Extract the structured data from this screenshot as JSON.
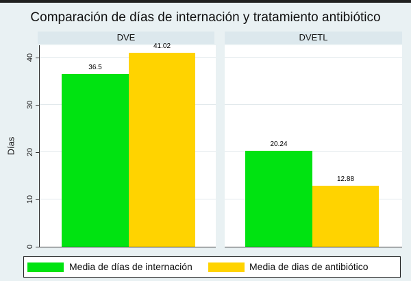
{
  "title": "Comparación de días de internación y tratamiento antibiótico",
  "colors": {
    "background": "#e9f1f3",
    "panel_header_bg": "#dce8ed",
    "plot_bg": "#ffffff",
    "gridline": "#e2e9ec",
    "axis_line": "#333333",
    "series_green": "#00e311",
    "series_gold": "#ffd300",
    "legend_border": "#222222",
    "top_strip": "#202020"
  },
  "chart_data": {
    "type": "bar",
    "title": "Comparación de días de internación y tratamiento antibiótico",
    "xlabel": "",
    "ylabel": "Días",
    "ylim": [
      0,
      42.6
    ],
    "yticks": [
      0,
      10,
      20,
      30,
      40
    ],
    "grid": true,
    "legend_position": "bottom",
    "panels": [
      {
        "label": "DVE",
        "values": [
          36.5,
          41.02
        ],
        "value_labels": [
          "36.5",
          "41.02"
        ]
      },
      {
        "label": "DVETL",
        "values": [
          20.24,
          12.88
        ],
        "value_labels": [
          "20.24",
          "12.88"
        ]
      }
    ],
    "series": [
      {
        "name": "Media de días de internación",
        "color": "#00e311"
      },
      {
        "name": "Media de dias de antibiótico",
        "color": "#ffd300"
      }
    ]
  },
  "legend": {
    "items": [
      {
        "label": "Media de días de internación",
        "color": "#00e311"
      },
      {
        "label": "Media de dias de antibiótico",
        "color": "#ffd300"
      }
    ]
  }
}
